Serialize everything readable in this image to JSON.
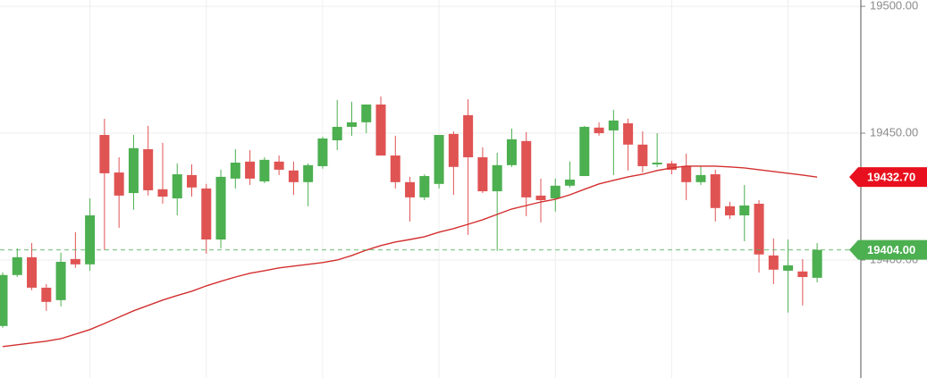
{
  "chart_data": {
    "type": "candlestick",
    "up_color": "#4caf50",
    "down_color": "#e05353",
    "open": [
      19374.0,
      19394.1,
      19401.1,
      19389.1,
      19384.2,
      19400.4,
      19398.3,
      19449.3,
      19434.5,
      19426.4,
      19443.7,
      19427.9,
      19424.3,
      19433.5,
      19428.2,
      19408.1,
      19432.1,
      19438.8,
      19431.0,
      19438.8,
      19435.3,
      19430.7,
      19437.0,
      19447.2,
      19452.5,
      19454.3,
      19461.3,
      19441.2,
      19430.7,
      19424.7,
      19430.0,
      19449.7,
      19457.1,
      19440.5,
      19427.1,
      19437.4,
      19446.9,
      19425.4,
      19424.3,
      19429.3,
      19433.1,
      19452.2,
      19451.1,
      19453.9,
      19445.5,
      19437.7,
      19438.1,
      19437.0,
      19430.7,
      19433.8,
      19421.2,
      19417.6,
      19422.2,
      19401.8,
      19395.8,
      19395.5,
      19393.0
    ],
    "high": [
      19395.1,
      19404.6,
      19406.7,
      19390.5,
      19402.9,
      19411.0,
      19424.3,
      19455.7,
      19440.5,
      19449.3,
      19452.9,
      19446.2,
      19438.1,
      19437.7,
      19430.0,
      19435.6,
      19443.7,
      19443.3,
      19440.5,
      19441.2,
      19438.8,
      19438.1,
      19448.6,
      19463.1,
      19462.4,
      19461.3,
      19464.5,
      19449.0,
      19432.8,
      19433.8,
      19449.3,
      19450.7,
      19463.4,
      19444.4,
      19442.3,
      19451.8,
      19450.4,
      19432.1,
      19432.1,
      19438.8,
      19452.9,
      19454.3,
      19459.2,
      19455.7,
      19450.7,
      19450.0,
      19439.1,
      19441.9,
      19437.0,
      19435.6,
      19422.9,
      19429.6,
      19423.6,
      19408.5,
      19408.1,
      19400.4,
      19406.7
    ],
    "low": [
      19373.3,
      19393.3,
      19388.1,
      19380.0,
      19381.7,
      19396.9,
      19395.8,
      19403.9,
      19412.7,
      19419.8,
      19425.4,
      19422.2,
      19417.6,
      19425.0,
      19402.5,
      19404.6,
      19428.2,
      19429.6,
      19430.3,
      19433.5,
      19425.7,
      19421.2,
      19436.0,
      19443.3,
      19449.0,
      19450.0,
      19441.2,
      19428.2,
      19415.2,
      19423.6,
      19428.2,
      19425.7,
      19409.9,
      19426.4,
      19403.6,
      19436.7,
      19417.3,
      19414.8,
      19419.1,
      19428.6,
      19433.1,
      19449.0,
      19433.5,
      19435.3,
      19434.5,
      19436.7,
      19433.8,
      19423.6,
      19429.6,
      19415.2,
      19416.2,
      19407.4,
      19395.1,
      19390.5,
      19379.3,
      19382.1,
      19391.2
    ],
    "close": [
      19394.1,
      19401.1,
      19389.1,
      19383.5,
      19399.3,
      19398.3,
      19417.6,
      19434.2,
      19425.4,
      19444.1,
      19427.5,
      19425.0,
      19433.8,
      19428.6,
      19408.1,
      19432.8,
      19438.4,
      19432.1,
      19439.5,
      19435.6,
      19430.7,
      19437.4,
      19447.9,
      19452.5,
      19454.3,
      19461.3,
      19441.2,
      19430.7,
      19424.7,
      19433.1,
      19449.3,
      19436.7,
      19440.5,
      19427.1,
      19437.4,
      19447.6,
      19424.7,
      19423.6,
      19429.3,
      19431.7,
      19452.5,
      19450.0,
      19455.0,
      19445.5,
      19437.0,
      19438.4,
      19435.6,
      19430.7,
      19433.5,
      19420.5,
      19417.6,
      19421.5,
      19402.2,
      19396.2,
      19397.9,
      19393.3,
      19404.0
    ],
    "overlay": {
      "type": "line",
      "color": "#d32f2f",
      "values": [
        19365.9,
        19366.6,
        19367.3,
        19368.0,
        19369.0,
        19370.8,
        19372.6,
        19375.0,
        19377.5,
        19380.0,
        19382.1,
        19384.2,
        19386.0,
        19387.7,
        19389.8,
        19391.6,
        19393.3,
        19394.8,
        19395.8,
        19396.9,
        19397.6,
        19398.3,
        19399.0,
        19400.0,
        19401.8,
        19403.9,
        19405.7,
        19407.1,
        19408.1,
        19409.2,
        19411.0,
        19412.4,
        19414.1,
        19415.9,
        19418.0,
        19420.1,
        19421.5,
        19422.9,
        19424.0,
        19425.7,
        19427.9,
        19430.0,
        19431.4,
        19432.8,
        19433.8,
        19435.3,
        19436.3,
        19437.0,
        19437.0,
        19437.0,
        19436.7,
        19436.3,
        19435.6,
        19434.9,
        19434.2,
        19433.5,
        19432.7
      ]
    },
    "price_tags": [
      {
        "value": 19432.7,
        "label": "19432.70",
        "color": "#e8101e"
      },
      {
        "value": 19404.0,
        "label": "19404.00",
        "color": "#4caf50"
      }
    ],
    "ylim": [
      19353.5,
      19502.5
    ],
    "yticks": [
      {
        "value": 19400,
        "label": "19400.00"
      },
      {
        "value": 19450,
        "label": "19450.00"
      },
      {
        "value": 19500,
        "label": "19500.00"
      }
    ],
    "grid": true
  }
}
